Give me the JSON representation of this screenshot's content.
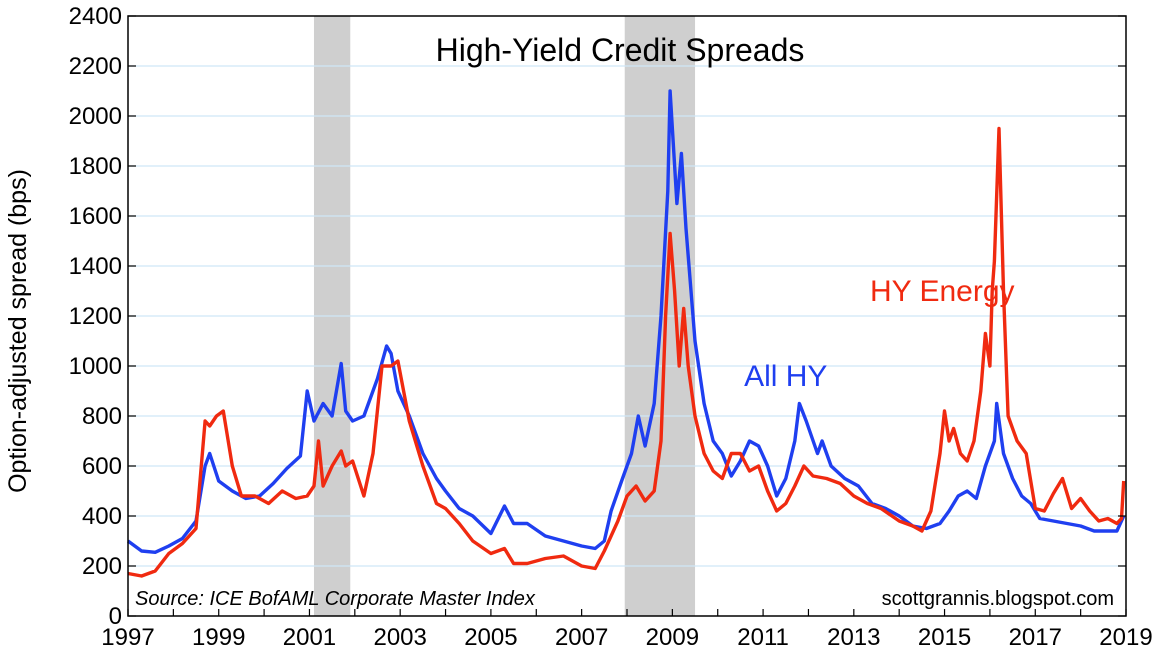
{
  "chart_data": {
    "type": "line",
    "title": "High-Yield Credit Spreads",
    "ylabel": "Option-adjusted spread (bps)",
    "xlabel": "",
    "xlim": [
      1997,
      2019
    ],
    "ylim": [
      0,
      2400
    ],
    "y_ticks": [
      "0",
      "200",
      "400",
      "600",
      "800",
      "1000",
      "1200",
      "1400",
      "1600",
      "1800",
      "2000",
      "2200",
      "2400"
    ],
    "x_ticks": [
      "1997",
      "1999",
      "2001",
      "2003",
      "2005",
      "2007",
      "2009",
      "2011",
      "2013",
      "2015",
      "2017",
      "2019"
    ],
    "grid": "horizontal",
    "recessions": [
      [
        2001.1,
        2001.9
      ],
      [
        2007.95,
        2009.5
      ]
    ],
    "recession_color": "#cfcfcf",
    "source": "Source: ICE BofAML Corporate Master Index",
    "watermark": "scottgrannis.blogspot.com",
    "series": [
      {
        "name": "All HY",
        "color": "#1f3ff0",
        "label_at": [
          2011.5,
          920
        ],
        "x": [
          1997.0,
          1997.3,
          1997.6,
          1997.9,
          1998.2,
          1998.5,
          1998.7,
          1998.8,
          1999.0,
          1999.3,
          1999.6,
          1999.9,
          2000.2,
          2000.5,
          2000.8,
          2000.95,
          2001.1,
          2001.3,
          2001.5,
          2001.7,
          2001.8,
          2001.95,
          2002.2,
          2002.5,
          2002.7,
          2002.8,
          2002.95,
          2003.2,
          2003.5,
          2003.8,
          2004.0,
          2004.3,
          2004.6,
          2005.0,
          2005.3,
          2005.5,
          2005.8,
          2006.2,
          2006.6,
          2007.0,
          2007.3,
          2007.5,
          2007.65,
          2007.9,
          2008.1,
          2008.25,
          2008.4,
          2008.6,
          2008.75,
          2008.9,
          2008.95,
          2009.1,
          2009.2,
          2009.3,
          2009.5,
          2009.7,
          2009.9,
          2010.1,
          2010.3,
          2010.5,
          2010.7,
          2010.9,
          2011.1,
          2011.3,
          2011.5,
          2011.7,
          2011.8,
          2011.95,
          2012.2,
          2012.3,
          2012.5,
          2012.8,
          2013.1,
          2013.4,
          2013.7,
          2014.0,
          2014.3,
          2014.6,
          2014.9,
          2015.1,
          2015.3,
          2015.5,
          2015.7,
          2015.9,
          2016.1,
          2016.15,
          2016.3,
          2016.5,
          2016.7,
          2016.9,
          2017.1,
          2017.4,
          2017.7,
          2018.0,
          2018.3,
          2018.6,
          2018.8,
          2018.95
        ],
        "values": [
          300,
          260,
          255,
          280,
          310,
          380,
          600,
          650,
          540,
          500,
          470,
          480,
          530,
          590,
          640,
          900,
          780,
          850,
          800,
          1010,
          820,
          780,
          800,
          950,
          1080,
          1050,
          900,
          800,
          650,
          550,
          500,
          430,
          400,
          330,
          440,
          370,
          370,
          320,
          300,
          280,
          270,
          300,
          420,
          550,
          650,
          800,
          680,
          850,
          1200,
          1700,
          2100,
          1650,
          1850,
          1550,
          1100,
          850,
          700,
          650,
          560,
          620,
          700,
          680,
          600,
          480,
          550,
          700,
          850,
          780,
          650,
          700,
          600,
          550,
          520,
          450,
          430,
          400,
          360,
          350,
          370,
          420,
          480,
          500,
          470,
          600,
          700,
          850,
          650,
          550,
          480,
          450,
          390,
          380,
          370,
          360,
          340,
          340,
          340,
          400
        ]
      },
      {
        "name": "HY Energy",
        "color": "#f02a10",
        "label_at": [
          2014.95,
          1260
        ],
        "x": [
          1997.0,
          1997.3,
          1997.6,
          1997.9,
          1998.2,
          1998.5,
          1998.7,
          1998.8,
          1998.95,
          1999.1,
          1999.3,
          1999.5,
          1999.8,
          2000.1,
          2000.4,
          2000.7,
          2000.95,
          2001.1,
          2001.2,
          2001.3,
          2001.5,
          2001.7,
          2001.8,
          2001.95,
          2002.2,
          2002.4,
          2002.6,
          2002.8,
          2002.95,
          2003.2,
          2003.5,
          2003.8,
          2004.0,
          2004.3,
          2004.6,
          2005.0,
          2005.3,
          2005.5,
          2005.8,
          2006.2,
          2006.6,
          2007.0,
          2007.3,
          2007.5,
          2007.8,
          2008.0,
          2008.2,
          2008.4,
          2008.6,
          2008.75,
          2008.85,
          2008.95,
          2009.05,
          2009.15,
          2009.25,
          2009.35,
          2009.5,
          2009.7,
          2009.9,
          2010.1,
          2010.3,
          2010.5,
          2010.7,
          2010.9,
          2011.1,
          2011.3,
          2011.5,
          2011.7,
          2011.9,
          2012.1,
          2012.4,
          2012.7,
          2013.0,
          2013.3,
          2013.6,
          2014.0,
          2014.3,
          2014.5,
          2014.7,
          2014.9,
          2015.0,
          2015.1,
          2015.2,
          2015.35,
          2015.5,
          2015.65,
          2015.8,
          2015.9,
          2016.0,
          2016.05,
          2016.1,
          2016.2,
          2016.3,
          2016.4,
          2016.6,
          2016.8,
          2017.0,
          2017.2,
          2017.4,
          2017.6,
          2017.8,
          2018.0,
          2018.2,
          2018.4,
          2018.6,
          2018.8,
          2018.9,
          2018.95
        ],
        "values": [
          170,
          160,
          180,
          250,
          290,
          350,
          780,
          760,
          800,
          820,
          600,
          480,
          480,
          450,
          500,
          470,
          480,
          520,
          700,
          520,
          600,
          660,
          600,
          620,
          480,
          650,
          1000,
          1000,
          1020,
          780,
          600,
          450,
          430,
          370,
          300,
          250,
          270,
          210,
          210,
          230,
          240,
          200,
          190,
          260,
          380,
          480,
          520,
          460,
          500,
          700,
          1200,
          1530,
          1300,
          1000,
          1230,
          1000,
          800,
          650,
          580,
          550,
          650,
          650,
          580,
          600,
          500,
          420,
          450,
          520,
          600,
          560,
          550,
          530,
          480,
          450,
          430,
          380,
          360,
          340,
          420,
          650,
          820,
          700,
          750,
          650,
          620,
          700,
          900,
          1130,
          1000,
          1300,
          1420,
          1950,
          1300,
          800,
          700,
          650,
          430,
          420,
          490,
          550,
          430,
          470,
          420,
          380,
          390,
          370,
          390,
          540
        ]
      }
    ]
  }
}
